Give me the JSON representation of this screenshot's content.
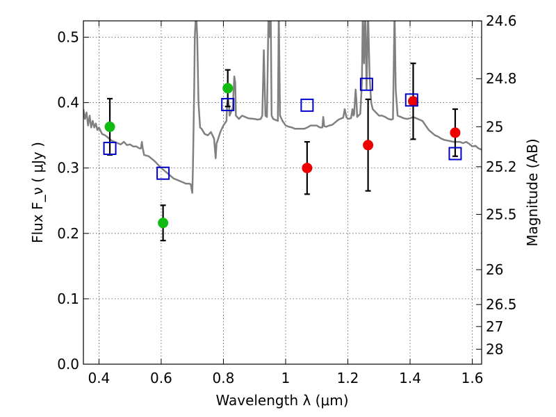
{
  "chart_data": {
    "type": "scatter",
    "xlabel": "Wavelength  λ (μm)",
    "ylabel_left": "Flux  F_ν  ( μJy )",
    "ylabel_right": "Magnitude (AB)",
    "xlim": [
      0.35,
      1.63
    ],
    "ylim": [
      0.0,
      0.525
    ],
    "x_ticks": [
      0.4,
      0.6,
      0.8,
      1.0,
      1.2,
      1.4,
      1.6
    ],
    "x_tick_labels": [
      "0.4",
      "0.6",
      "0.8",
      "1",
      "1.2",
      "1.4",
      "1.6"
    ],
    "y_ticks": [
      0.0,
      0.1,
      0.2,
      0.3,
      0.4,
      0.5
    ],
    "y_tick_labels": [
      "0.0",
      "0.1",
      "0.2",
      "0.3",
      "0.4",
      "0.5"
    ],
    "mag_ticks": [
      24.6,
      24.8,
      25,
      25.2,
      25.5,
      26,
      26.5,
      27,
      28
    ],
    "mag_tick_labels": [
      "24.6",
      "24.8",
      "25",
      "25.2",
      "25.5",
      "26",
      "26.5",
      "27",
      "28"
    ],
    "grid": true,
    "colors": {
      "green": "#11bb11",
      "red": "#ee0000",
      "blue": "#0000cc",
      "model": "#808080"
    },
    "series": [
      {
        "marker": "circle",
        "color": "green",
        "points": [
          {
            "x": 0.435,
            "y": 0.363,
            "err": 0.043
          },
          {
            "x": 0.606,
            "y": 0.216,
            "err": 0.027
          },
          {
            "x": 0.814,
            "y": 0.422,
            "err": 0.028
          }
        ]
      },
      {
        "marker": "circle",
        "color": "red",
        "points": [
          {
            "x": 1.069,
            "y": 0.3,
            "err": 0.04
          },
          {
            "x": 1.265,
            "y": 0.335,
            "err": 0.07
          },
          {
            "x": 1.41,
            "y": 0.402,
            "err": 0.058
          },
          {
            "x": 1.545,
            "y": 0.354,
            "err": 0.036
          }
        ]
      },
      {
        "marker": "square-open",
        "color": "blue",
        "points": [
          {
            "x": 0.435,
            "y": 0.33
          },
          {
            "x": 0.606,
            "y": 0.292
          },
          {
            "x": 0.814,
            "y": 0.397
          },
          {
            "x": 1.069,
            "y": 0.396
          },
          {
            "x": 1.26,
            "y": 0.428
          },
          {
            "x": 1.405,
            "y": 0.404
          },
          {
            "x": 1.545,
            "y": 0.322
          }
        ]
      }
    ],
    "model_spectrum": [
      [
        0.35,
        0.39
      ],
      [
        0.355,
        0.375
      ],
      [
        0.36,
        0.385
      ],
      [
        0.365,
        0.365
      ],
      [
        0.37,
        0.38
      ],
      [
        0.375,
        0.362
      ],
      [
        0.38,
        0.372
      ],
      [
        0.385,
        0.362
      ],
      [
        0.39,
        0.368
      ],
      [
        0.395,
        0.358
      ],
      [
        0.4,
        0.362
      ],
      [
        0.41,
        0.352
      ],
      [
        0.42,
        0.35
      ],
      [
        0.43,
        0.346
      ],
      [
        0.44,
        0.342
      ],
      [
        0.45,
        0.34
      ],
      [
        0.46,
        0.338
      ],
      [
        0.47,
        0.336
      ],
      [
        0.48,
        0.34
      ],
      [
        0.49,
        0.335
      ],
      [
        0.5,
        0.336
      ],
      [
        0.51,
        0.333
      ],
      [
        0.52,
        0.333
      ],
      [
        0.53,
        0.33
      ],
      [
        0.535,
        0.33
      ],
      [
        0.538,
        0.34
      ],
      [
        0.54,
        0.332
      ],
      [
        0.545,
        0.32
      ],
      [
        0.56,
        0.318
      ],
      [
        0.58,
        0.31
      ],
      [
        0.6,
        0.3
      ],
      [
        0.62,
        0.292
      ],
      [
        0.64,
        0.284
      ],
      [
        0.66,
        0.28
      ],
      [
        0.67,
        0.278
      ],
      [
        0.68,
        0.276
      ],
      [
        0.69,
        0.276
      ],
      [
        0.695,
        0.275
      ],
      [
        0.7,
        0.262
      ],
      [
        0.702,
        0.3
      ],
      [
        0.704,
        0.36
      ],
      [
        0.706,
        0.42
      ],
      [
        0.708,
        0.5
      ],
      [
        0.712,
        0.54
      ],
      [
        0.716,
        0.5
      ],
      [
        0.72,
        0.4
      ],
      [
        0.725,
        0.362
      ],
      [
        0.73,
        0.36
      ],
      [
        0.74,
        0.352
      ],
      [
        0.75,
        0.35
      ],
      [
        0.76,
        0.355
      ],
      [
        0.77,
        0.345
      ],
      [
        0.775,
        0.315
      ],
      [
        0.778,
        0.338
      ],
      [
        0.78,
        0.34
      ],
      [
        0.79,
        0.355
      ],
      [
        0.8,
        0.365
      ],
      [
        0.81,
        0.372
      ],
      [
        0.812,
        0.4
      ],
      [
        0.815,
        0.405
      ],
      [
        0.818,
        0.395
      ],
      [
        0.82,
        0.38
      ],
      [
        0.83,
        0.392
      ],
      [
        0.835,
        0.44
      ],
      [
        0.838,
        0.43
      ],
      [
        0.84,
        0.38
      ],
      [
        0.85,
        0.375
      ],
      [
        0.86,
        0.38
      ],
      [
        0.87,
        0.378
      ],
      [
        0.88,
        0.376
      ],
      [
        0.9,
        0.375
      ],
      [
        0.91,
        0.374
      ],
      [
        0.92,
        0.375
      ],
      [
        0.925,
        0.38
      ],
      [
        0.93,
        0.48
      ],
      [
        0.932,
        0.44
      ],
      [
        0.935,
        0.38
      ],
      [
        0.94,
        0.378
      ],
      [
        0.945,
        0.54
      ],
      [
        0.948,
        0.5
      ],
      [
        0.952,
        0.54
      ],
      [
        0.955,
        0.38
      ],
      [
        0.96,
        0.375
      ],
      [
        0.97,
        0.373
      ],
      [
        0.975,
        0.372
      ],
      [
        0.978,
        0.54
      ],
      [
        0.982,
        0.38
      ],
      [
        0.99,
        0.372
      ],
      [
        1.0,
        0.365
      ],
      [
        1.01,
        0.363
      ],
      [
        1.02,
        0.362
      ],
      [
        1.03,
        0.36
      ],
      [
        1.04,
        0.36
      ],
      [
        1.05,
        0.36
      ],
      [
        1.06,
        0.36
      ],
      [
        1.07,
        0.362
      ],
      [
        1.08,
        0.365
      ],
      [
        1.09,
        0.365
      ],
      [
        1.1,
        0.365
      ],
      [
        1.11,
        0.362
      ],
      [
        1.118,
        0.362
      ],
      [
        1.121,
        0.378
      ],
      [
        1.124,
        0.364
      ],
      [
        1.13,
        0.363
      ],
      [
        1.14,
        0.365
      ],
      [
        1.15,
        0.366
      ],
      [
        1.16,
        0.37
      ],
      [
        1.17,
        0.374
      ],
      [
        1.18,
        0.376
      ],
      [
        1.185,
        0.377
      ],
      [
        1.19,
        0.39
      ],
      [
        1.195,
        0.378
      ],
      [
        1.2,
        0.375
      ],
      [
        1.21,
        0.376
      ],
      [
        1.215,
        0.39
      ],
      [
        1.218,
        0.38
      ],
      [
        1.22,
        0.382
      ],
      [
        1.225,
        0.42
      ],
      [
        1.228,
        0.4
      ],
      [
        1.23,
        0.378
      ],
      [
        1.24,
        0.383
      ],
      [
        1.245,
        0.43
      ],
      [
        1.248,
        0.54
      ],
      [
        1.252,
        0.46
      ],
      [
        1.256,
        0.54
      ],
      [
        1.26,
        0.42
      ],
      [
        1.265,
        0.54
      ],
      [
        1.27,
        0.44
      ],
      [
        1.275,
        0.4
      ],
      [
        1.28,
        0.39
      ],
      [
        1.29,
        0.385
      ],
      [
        1.3,
        0.38
      ],
      [
        1.31,
        0.38
      ],
      [
        1.32,
        0.378
      ],
      [
        1.33,
        0.375
      ],
      [
        1.34,
        0.374
      ],
      [
        1.345,
        0.375
      ],
      [
        1.35,
        0.54
      ],
      [
        1.354,
        0.42
      ],
      [
        1.36,
        0.38
      ],
      [
        1.37,
        0.378
      ],
      [
        1.38,
        0.376
      ],
      [
        1.39,
        0.375
      ],
      [
        1.4,
        0.376
      ],
      [
        1.41,
        0.378
      ],
      [
        1.42,
        0.376
      ],
      [
        1.43,
        0.374
      ],
      [
        1.44,
        0.372
      ],
      [
        1.45,
        0.365
      ],
      [
        1.46,
        0.358
      ],
      [
        1.47,
        0.354
      ],
      [
        1.48,
        0.35
      ],
      [
        1.49,
        0.348
      ],
      [
        1.5,
        0.345
      ],
      [
        1.51,
        0.343
      ],
      [
        1.52,
        0.342
      ],
      [
        1.53,
        0.341
      ],
      [
        1.54,
        0.34
      ],
      [
        1.55,
        0.34
      ],
      [
        1.56,
        0.34
      ],
      [
        1.57,
        0.338
      ],
      [
        1.58,
        0.34
      ],
      [
        1.59,
        0.337
      ],
      [
        1.6,
        0.333
      ],
      [
        1.61,
        0.334
      ],
      [
        1.62,
        0.33
      ],
      [
        1.63,
        0.328
      ]
    ]
  }
}
